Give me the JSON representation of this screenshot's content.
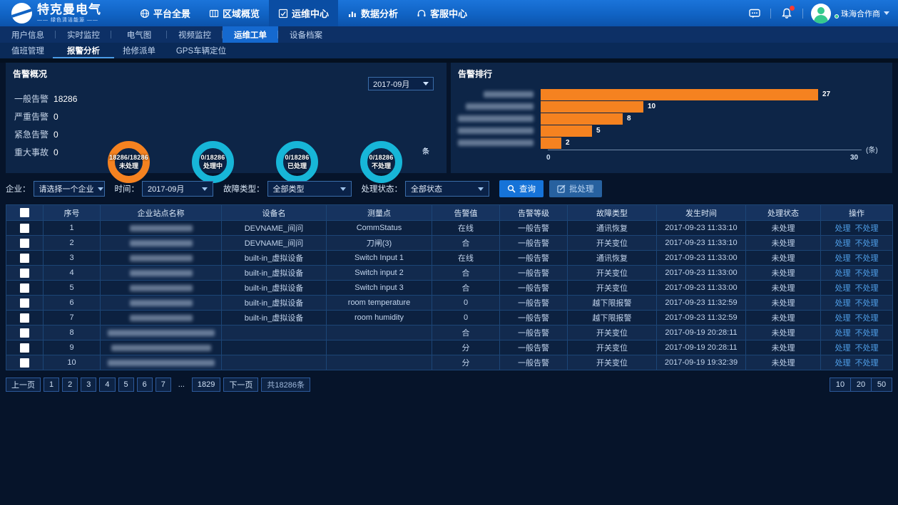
{
  "brand": {
    "name": "特克曼电气",
    "tagline": "—— 绿色清洁能源 ——"
  },
  "topnav": {
    "items": [
      {
        "label": "平台全景",
        "icon": "globe-icon",
        "active": false
      },
      {
        "label": "区域概览",
        "icon": "map-icon",
        "active": false
      },
      {
        "label": "运维中心",
        "icon": "ops-icon",
        "active": true
      },
      {
        "label": "数据分析",
        "icon": "chart-icon",
        "active": false
      },
      {
        "label": "客服中心",
        "icon": "headset-icon",
        "active": false
      }
    ],
    "user": {
      "name": "珠海合作商"
    }
  },
  "subnav": {
    "tabs": [
      {
        "label": "用户信息",
        "active": false
      },
      {
        "label": "实时监控",
        "active": false
      },
      {
        "label": "电气图",
        "active": false
      },
      {
        "label": "视频监控",
        "active": false
      },
      {
        "label": "运维工单",
        "active": true
      },
      {
        "label": "设备档案",
        "active": false
      }
    ],
    "subtabs": [
      {
        "label": "值班管理",
        "active": false
      },
      {
        "label": "报警分析",
        "active": true
      },
      {
        "label": "抢修派单",
        "active": false
      },
      {
        "label": "GPS车辆定位",
        "active": false,
        "wide": true
      }
    ]
  },
  "overview": {
    "title": "告警概况",
    "month": "2017-09月",
    "stats": [
      {
        "label": "一般告警",
        "value": "18286",
        "unit": "条"
      },
      {
        "label": "严重告警",
        "value": "0",
        "unit": "条"
      },
      {
        "label": "紧急告警",
        "value": "0",
        "unit": "条"
      },
      {
        "label": "重大事故",
        "value": "0",
        "unit": "条"
      }
    ],
    "donuts": [
      {
        "ratio": "18286/18286",
        "label": "未处理",
        "color": "#f58220"
      },
      {
        "ratio": "0/18286",
        "label": "处理中",
        "color": "#17b6d8"
      },
      {
        "ratio": "0/18286",
        "label": "已处理",
        "color": "#17b6d8"
      },
      {
        "ratio": "0/18286",
        "label": "不处理",
        "color": "#17b6d8"
      }
    ]
  },
  "ranking": {
    "title": "告警排行"
  },
  "chart_data": {
    "type": "bar",
    "orientation": "horizontal",
    "title": "告警排行",
    "categories": [
      "",
      "",
      "",
      "",
      ""
    ],
    "categories_censored": true,
    "category_blur_widths": [
      70,
      95,
      140,
      115,
      120
    ],
    "values": [
      27,
      10,
      8,
      5,
      2
    ],
    "xlim": [
      0,
      30
    ],
    "x_ticks": [
      "0",
      "30"
    ],
    "unit": "(条)",
    "bar_color": "#f58220"
  },
  "filters": {
    "enterprise": {
      "label": "企业：",
      "value": "请选择一个企业"
    },
    "time": {
      "label": "时间：",
      "value": "2017-09月"
    },
    "fault_type": {
      "label": "故障类型：",
      "value": "全部类型"
    },
    "status": {
      "label": "处理状态：",
      "value": "全部状态"
    },
    "search_label": "查询",
    "batch_label": "批处理"
  },
  "table": {
    "headers": [
      "序号",
      "企业站点名称",
      "设备名",
      "测量点",
      "告警值",
      "告警等级",
      "故障类型",
      "发生时间",
      "处理状态",
      "操作"
    ],
    "action_labels": [
      "处理",
      "不处理"
    ],
    "rows": [
      {
        "index": "1",
        "site": "",
        "site_blur": 88,
        "device": "DEVNAME_间问",
        "point": "CommStatus",
        "value": "在线",
        "level": "一般告警",
        "fault": "通讯恢复",
        "time": "2017-09-23 11:33:10",
        "status": "未处理"
      },
      {
        "index": "2",
        "site": "",
        "site_blur": 88,
        "device": "DEVNAME_间问",
        "point": "刀闸(3)",
        "value": "合",
        "level": "一般告警",
        "fault": "开关变位",
        "time": "2017-09-23 11:33:10",
        "status": "未处理"
      },
      {
        "index": "3",
        "site": "",
        "site_blur": 88,
        "device": "built-in_虚拟设备",
        "point": "Switch Input 1",
        "value": "在线",
        "level": "一般告警",
        "fault": "通讯恢复",
        "time": "2017-09-23 11:33:00",
        "status": "未处理"
      },
      {
        "index": "4",
        "site": "",
        "site_blur": 88,
        "device": "built-in_虚拟设备",
        "point": "Switch input 2",
        "value": "合",
        "level": "一般告警",
        "fault": "开关变位",
        "time": "2017-09-23 11:33:00",
        "status": "未处理"
      },
      {
        "index": "5",
        "site": "",
        "site_blur": 88,
        "device": "built-in_虚拟设备",
        "point": "Switch input 3",
        "value": "合",
        "level": "一般告警",
        "fault": "开关变位",
        "time": "2017-09-23 11:33:00",
        "status": "未处理"
      },
      {
        "index": "6",
        "site": "",
        "site_blur": 88,
        "device": "built-in_虚拟设备",
        "point": "room temperature",
        "value": "0",
        "level": "一般告警",
        "fault": "越下限报警",
        "time": "2017-09-23 11:32:59",
        "status": "未处理"
      },
      {
        "index": "7",
        "site": "",
        "site_blur": 88,
        "device": "built-in_虚拟设备",
        "point": "room humidity",
        "value": "0",
        "level": "一般告警",
        "fault": "越下限报警",
        "time": "2017-09-23 11:32:59",
        "status": "未处理"
      },
      {
        "index": "8",
        "site": "",
        "site_blur": 150,
        "device": "",
        "point": "",
        "value": "合",
        "level": "一般告警",
        "fault": "开关变位",
        "time": "2017-09-19 20:28:11",
        "status": "未处理"
      },
      {
        "index": "9",
        "site": "",
        "site_blur": 140,
        "device": "",
        "point": "",
        "value": "分",
        "level": "一般告警",
        "fault": "开关变位",
        "time": "2017-09-19 20:28:11",
        "status": "未处理"
      },
      {
        "index": "10",
        "site": "",
        "site_blur": 150,
        "device": "",
        "point": "",
        "value": "分",
        "level": "一般告警",
        "fault": "开关变位",
        "time": "2017-09-19 19:32:39",
        "status": "未处理"
      }
    ]
  },
  "pagination": {
    "prev": "上一页",
    "pages": [
      "1",
      "2",
      "3",
      "4",
      "5",
      "6",
      "7"
    ],
    "ellipsis": "...",
    "last_page": "1829",
    "next": "下一页",
    "total": "共18286条",
    "page_sizes": [
      "10",
      "20",
      "50"
    ]
  }
}
